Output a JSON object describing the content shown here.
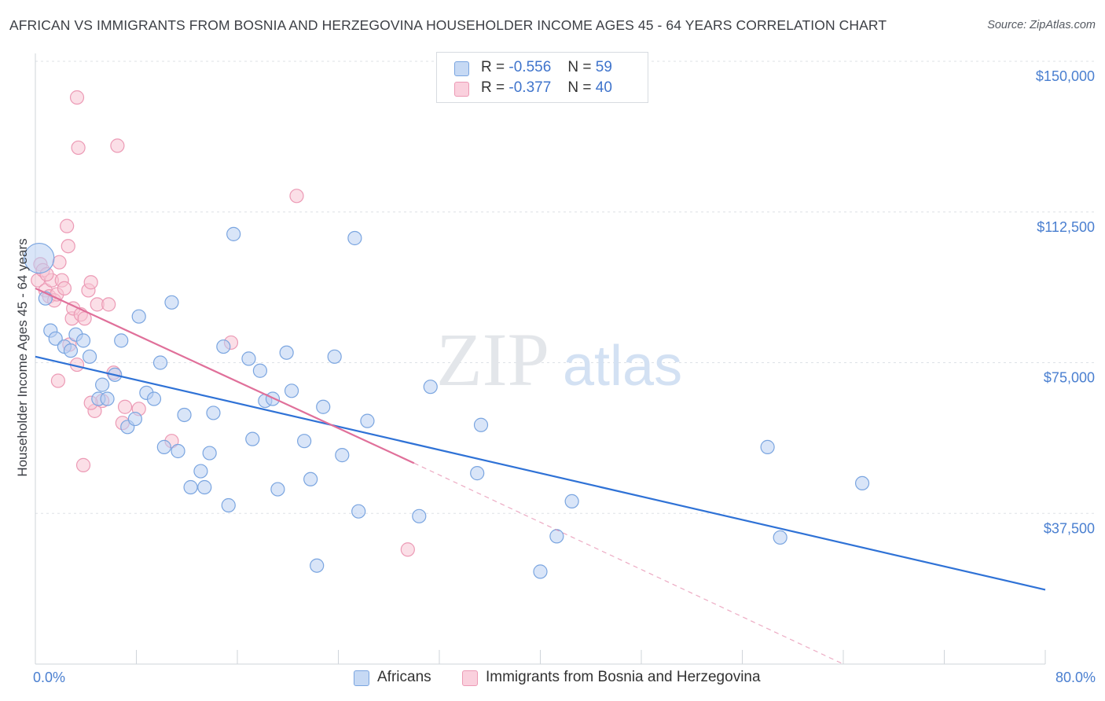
{
  "header": {
    "title": "AFRICAN VS IMMIGRANTS FROM BOSNIA AND HERZEGOVINA HOUSEHOLDER INCOME AGES 45 - 64 YEARS CORRELATION CHART",
    "source": "Source: ZipAtlas.com"
  },
  "legend": {
    "r_label": "R =",
    "n_label": "N =",
    "series": [
      {
        "name": "Africans",
        "r": "-0.556",
        "n": "59"
      },
      {
        "name": "Immigrants from Bosnia and Herzegovina",
        "r": "-0.377",
        "n": "40"
      }
    ]
  },
  "watermark": {
    "zip": "ZIP",
    "atlas": "atlas"
  },
  "chart_data": {
    "type": "scatter",
    "title": "AFRICAN VS IMMIGRANTS FROM BOSNIA AND HERZEGOVINA HOUSEHOLDER INCOME AGES 45 - 64 YEARS CORRELATION CHART",
    "xlabel": "",
    "ylabel": "Householder Income Ages 45 - 64 years",
    "xlim": [
      0,
      80
    ],
    "ylim": [
      0,
      155000
    ],
    "x_tick_labels": {
      "left": "0.0%",
      "right": "80.0%"
    },
    "y_ticks": [
      {
        "value": 37500,
        "label": "$37,500"
      },
      {
        "value": 75000,
        "label": "$75,000"
      },
      {
        "value": 112500,
        "label": "$112,500"
      },
      {
        "value": 150000,
        "label": "$150,000"
      }
    ],
    "colors": {
      "africans_fill": "#b9d0f2",
      "africans_stroke": "#7aa5e0",
      "africans_line": "#2f72d6",
      "bosnia_fill": "#f8c4d4",
      "bosnia_stroke": "#ec9ab5",
      "bosnia_line": "#e0709a"
    },
    "series": [
      {
        "name": "Africans",
        "trend": {
          "x1": 0,
          "y1": 76500,
          "x2": 80,
          "y2": 18500,
          "dash_from": null
        },
        "points": [
          {
            "x": 0.3,
            "y": 101000,
            "size": "large"
          },
          {
            "x": 0.8,
            "y": 91000
          },
          {
            "x": 1.2,
            "y": 83000
          },
          {
            "x": 1.6,
            "y": 81000
          },
          {
            "x": 2.3,
            "y": 79000
          },
          {
            "x": 2.8,
            "y": 78000
          },
          {
            "x": 3.2,
            "y": 82000
          },
          {
            "x": 3.8,
            "y": 80500
          },
          {
            "x": 4.3,
            "y": 76500
          },
          {
            "x": 5.0,
            "y": 66000
          },
          {
            "x": 5.3,
            "y": 69500
          },
          {
            "x": 5.7,
            "y": 66000
          },
          {
            "x": 6.3,
            "y": 72000
          },
          {
            "x": 6.8,
            "y": 80500
          },
          {
            "x": 7.3,
            "y": 59000
          },
          {
            "x": 7.9,
            "y": 61000
          },
          {
            "x": 8.2,
            "y": 86500
          },
          {
            "x": 8.8,
            "y": 67500
          },
          {
            "x": 9.4,
            "y": 66000
          },
          {
            "x": 9.9,
            "y": 75000
          },
          {
            "x": 10.2,
            "y": 54000
          },
          {
            "x": 10.8,
            "y": 90000
          },
          {
            "x": 11.3,
            "y": 53000
          },
          {
            "x": 11.8,
            "y": 62000
          },
          {
            "x": 12.3,
            "y": 44000
          },
          {
            "x": 13.1,
            "y": 48000
          },
          {
            "x": 13.4,
            "y": 44000
          },
          {
            "x": 13.8,
            "y": 52500
          },
          {
            "x": 14.1,
            "y": 62500
          },
          {
            "x": 14.9,
            "y": 79000
          },
          {
            "x": 15.3,
            "y": 39500
          },
          {
            "x": 15.7,
            "y": 107000
          },
          {
            "x": 16.9,
            "y": 76000
          },
          {
            "x": 17.2,
            "y": 56000
          },
          {
            "x": 17.8,
            "y": 73000
          },
          {
            "x": 18.2,
            "y": 65500
          },
          {
            "x": 18.8,
            "y": 66000
          },
          {
            "x": 19.2,
            "y": 43500
          },
          {
            "x": 19.9,
            "y": 77500
          },
          {
            "x": 20.3,
            "y": 68000
          },
          {
            "x": 21.3,
            "y": 55500
          },
          {
            "x": 21.8,
            "y": 46000
          },
          {
            "x": 22.3,
            "y": 24500
          },
          {
            "x": 22.8,
            "y": 64000
          },
          {
            "x": 23.7,
            "y": 76500
          },
          {
            "x": 24.3,
            "y": 52000
          },
          {
            "x": 25.3,
            "y": 106000
          },
          {
            "x": 25.6,
            "y": 38000
          },
          {
            "x": 26.3,
            "y": 60500
          },
          {
            "x": 30.4,
            "y": 36800
          },
          {
            "x": 31.3,
            "y": 69000
          },
          {
            "x": 35.0,
            "y": 47500
          },
          {
            "x": 35.3,
            "y": 59500
          },
          {
            "x": 40.0,
            "y": 23000
          },
          {
            "x": 41.3,
            "y": 31800
          },
          {
            "x": 42.5,
            "y": 40500
          },
          {
            "x": 58.0,
            "y": 54000
          },
          {
            "x": 59.0,
            "y": 31500
          },
          {
            "x": 65.5,
            "y": 45000
          }
        ]
      },
      {
        "name": "Immigrants from Bosnia and Herzegovina",
        "trend": {
          "x1": 0,
          "y1": 93500,
          "x2": 30,
          "y2": 50000,
          "x3": 64,
          "y3": 0
        },
        "points": [
          {
            "x": 0.2,
            "y": 95500
          },
          {
            "x": 0.4,
            "y": 99500
          },
          {
            "x": 0.6,
            "y": 98000
          },
          {
            "x": 0.8,
            "y": 93000
          },
          {
            "x": 1.1,
            "y": 91500
          },
          {
            "x": 1.3,
            "y": 95500
          },
          {
            "x": 1.5,
            "y": 90500
          },
          {
            "x": 1.7,
            "y": 92000
          },
          {
            "x": 1.9,
            "y": 100000
          },
          {
            "x": 2.1,
            "y": 95500
          },
          {
            "x": 2.3,
            "y": 93500
          },
          {
            "x": 2.5,
            "y": 109000
          },
          {
            "x": 2.6,
            "y": 104000
          },
          {
            "x": 2.9,
            "y": 86000
          },
          {
            "x": 3.0,
            "y": 88500
          },
          {
            "x": 3.3,
            "y": 74500
          },
          {
            "x": 3.3,
            "y": 141000
          },
          {
            "x": 3.4,
            "y": 128500
          },
          {
            "x": 3.6,
            "y": 87000
          },
          {
            "x": 3.9,
            "y": 86000
          },
          {
            "x": 4.2,
            "y": 93000
          },
          {
            "x": 4.4,
            "y": 95000
          },
          {
            "x": 4.7,
            "y": 63000
          },
          {
            "x": 4.9,
            "y": 89500
          },
          {
            "x": 5.3,
            "y": 65500
          },
          {
            "x": 5.8,
            "y": 89500
          },
          {
            "x": 6.2,
            "y": 72500
          },
          {
            "x": 6.5,
            "y": 129000
          },
          {
            "x": 6.9,
            "y": 60000
          },
          {
            "x": 7.1,
            "y": 64000
          },
          {
            "x": 8.2,
            "y": 63500
          },
          {
            "x": 10.8,
            "y": 55500
          },
          {
            "x": 15.5,
            "y": 80000
          },
          {
            "x": 20.7,
            "y": 116500
          },
          {
            "x": 29.5,
            "y": 28500
          },
          {
            "x": 1.8,
            "y": 70500
          },
          {
            "x": 3.8,
            "y": 49500
          },
          {
            "x": 4.4,
            "y": 65000
          },
          {
            "x": 2.7,
            "y": 79500
          },
          {
            "x": 0.9,
            "y": 97000
          }
        ]
      }
    ]
  }
}
